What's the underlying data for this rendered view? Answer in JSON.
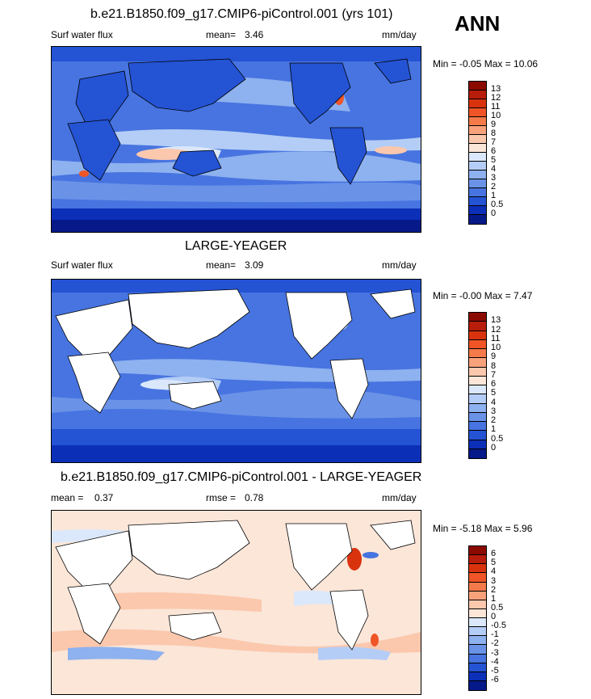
{
  "season": "ANN",
  "panels": [
    {
      "title": "b.e21.B1850.f09_g17.CMIP6-piControl.001 (yrs 101)",
      "left_label": "Surf water flux",
      "mean_label": "mean=",
      "mean_value": "3.46",
      "units": "mm/day",
      "minmax": "Min = -0.05 Max = 10.06",
      "colorbar": {
        "labels": [
          "13",
          "12",
          "11",
          "10",
          "9",
          "8",
          "7",
          "6",
          "5",
          "4",
          "3",
          "2",
          "1",
          "0.5",
          "0"
        ],
        "colors": [
          "#8b0a00",
          "#b81c0a",
          "#d9330e",
          "#ef5526",
          "#f47a4a",
          "#f8a27c",
          "#fbc8ad",
          "#fbe6d8",
          "#dbe8fb",
          "#b4cdf6",
          "#8eb1ef",
          "#6a93e8",
          "#4774e0",
          "#2453d4",
          "#0c2fb8",
          "#051a88"
        ]
      }
    },
    {
      "title": "LARGE-YEAGER",
      "left_label": "Surf water flux",
      "mean_label": "mean=",
      "mean_value": "3.09",
      "units": "mm/day",
      "minmax": "Min = -0.00 Max = 7.47",
      "colorbar": {
        "labels": [
          "13",
          "12",
          "11",
          "10",
          "9",
          "8",
          "7",
          "6",
          "5",
          "4",
          "3",
          "2",
          "1",
          "0.5",
          "0"
        ],
        "colors": [
          "#8b0a00",
          "#b81c0a",
          "#d9330e",
          "#ef5526",
          "#f47a4a",
          "#f8a27c",
          "#fbc8ad",
          "#fbe6d8",
          "#dbe8fb",
          "#b4cdf6",
          "#8eb1ef",
          "#6a93e8",
          "#4774e0",
          "#2453d4",
          "#0c2fb8",
          "#051a88"
        ]
      }
    },
    {
      "title": "b.e21.B1850.f09_g17.CMIP6-piControl.001 - LARGE-YEAGER",
      "left_label": "mean =",
      "left_value": "0.37",
      "mean_label": "rmse =",
      "mean_value": "0.78",
      "units": "mm/day",
      "minmax": "Min = -5.18 Max = 5.96",
      "colorbar": {
        "labels": [
          "6",
          "5",
          "4",
          "3",
          "2",
          "1",
          "0.5",
          "0",
          "-0.5",
          "-1",
          "-2",
          "-3",
          "-4",
          "-5",
          "-6"
        ],
        "colors": [
          "#8b0a00",
          "#b81c0a",
          "#d9330e",
          "#ef5526",
          "#f47a4a",
          "#f8a27c",
          "#fbc8ad",
          "#fbe6d8",
          "#dbe8fb",
          "#b4cdf6",
          "#8eb1ef",
          "#6a93e8",
          "#4774e0",
          "#2453d4",
          "#0c2fb8",
          "#051a88"
        ]
      }
    }
  ]
}
